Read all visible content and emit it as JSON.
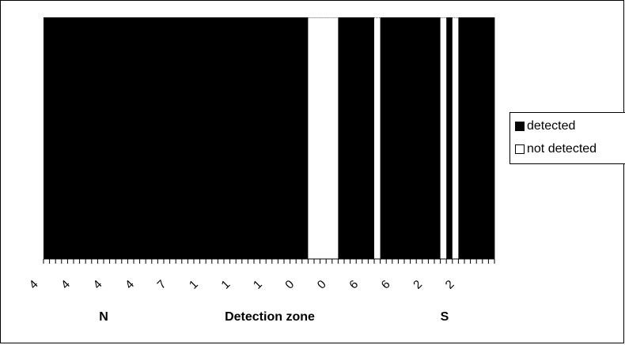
{
  "chart_data": {
    "type": "bar",
    "xlabel": "Detection zone",
    "x_extremes": {
      "left": "N",
      "right": "S"
    },
    "tick_labels": [
      "4",
      "4",
      "4",
      "4",
      "7",
      "1",
      "1",
      "1",
      "0",
      "0",
      "6",
      "6",
      "2",
      "2"
    ],
    "legend": [
      {
        "name": "detected",
        "color": "#000000"
      },
      {
        "name": "not detected",
        "color": "#ffffff"
      }
    ],
    "legend_position": "right",
    "ylim": [
      0,
      1
    ],
    "grid": false,
    "bar_count": 75,
    "bars": [
      1,
      1,
      1,
      1,
      1,
      1,
      1,
      1,
      1,
      1,
      1,
      1,
      1,
      1,
      1,
      1,
      1,
      1,
      1,
      1,
      1,
      1,
      1,
      1,
      1,
      1,
      1,
      1,
      1,
      1,
      1,
      1,
      1,
      1,
      1,
      1,
      1,
      1,
      1,
      1,
      1,
      1,
      1,
      1,
      0,
      0,
      0,
      0,
      0,
      1,
      1,
      1,
      1,
      1,
      1,
      0,
      1,
      1,
      1,
      1,
      1,
      1,
      1,
      1,
      1,
      1,
      0,
      1,
      0,
      1,
      1,
      1,
      1,
      1,
      1
    ]
  }
}
